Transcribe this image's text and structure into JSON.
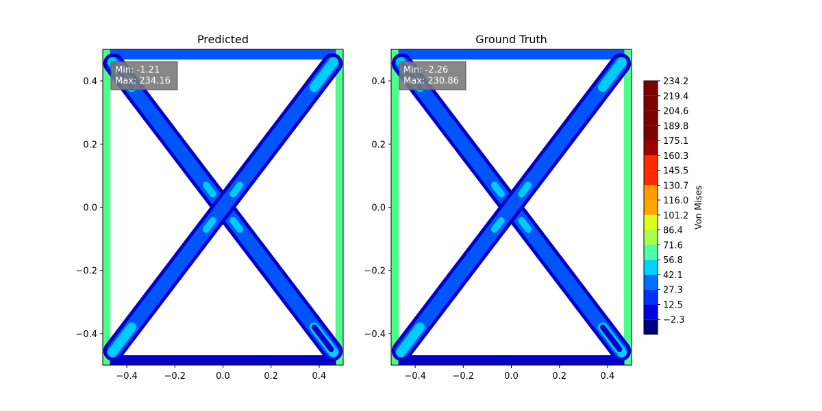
{
  "chart_data": [
    {
      "type": "heatmap",
      "title": "Predicted",
      "xlim": [
        -0.5,
        0.5
      ],
      "ylim": [
        -0.5,
        0.5
      ],
      "xticks": [
        -0.4,
        -0.2,
        0.0,
        0.2,
        0.4
      ],
      "xtick_labels": [
        "−0.4",
        "−0.2",
        "0.0",
        "0.2",
        "0.4"
      ],
      "yticks": [
        0.4,
        0.2,
        0.0,
        -0.2,
        -0.4
      ],
      "ytick_labels": [
        "0.4",
        "0.2",
        "0.0",
        "−0.2",
        "−0.4"
      ],
      "annotation": {
        "min_label": "Min: -1.21",
        "max_label": "Max: 234.16"
      },
      "min": -1.21,
      "max": 234.16
    },
    {
      "type": "heatmap",
      "title": "Ground Truth",
      "xlim": [
        -0.5,
        0.5
      ],
      "ylim": [
        -0.5,
        0.5
      ],
      "xticks": [
        -0.4,
        -0.2,
        0.0,
        0.2,
        0.4
      ],
      "xtick_labels": [
        "−0.4",
        "−0.2",
        "0.0",
        "0.2",
        "0.4"
      ],
      "yticks": [
        0.4,
        0.2,
        0.0,
        -0.2,
        -0.4
      ],
      "ytick_labels": [
        "0.4",
        "0.2",
        "0.0",
        "−0.2",
        "−0.4"
      ],
      "annotation": {
        "min_label": "Min: -2.26",
        "max_label": "Max: 230.86"
      },
      "min": -2.26,
      "max": 230.86
    }
  ],
  "colorbar": {
    "label": "Von Mises",
    "levels": [
      -17.1,
      -2.3,
      12.5,
      27.3,
      42.1,
      56.8,
      71.6,
      86.4,
      101.2,
      116.0,
      130.7,
      145.5,
      160.3,
      175.1,
      189.8,
      204.6,
      219.4,
      234.2
    ],
    "tick_labels": [
      "234.2",
      "219.4",
      "204.6",
      "189.8",
      "175.1",
      "160.3",
      "145.5",
      "130.7",
      "116.0",
      "101.2",
      "86.4",
      "71.6",
      "56.8",
      "42.1",
      "27.3",
      "12.5",
      "−2.3"
    ],
    "band_colors": [
      "#00007f",
      "#0000e0",
      "#0032ff",
      "#0070ff",
      "#00d4ff",
      "#4cffaa",
      "#aaff4c",
      "#d8ff1e",
      "#ffa500",
      "#ff9a00",
      "#ff2a00",
      "#ff2a00",
      "#9f0000",
      "#7f0000",
      "#7f0000",
      "#7f0000"
    ]
  },
  "colors": {
    "dark_blue": "#0000c8",
    "blue": "#0055ff",
    "light_blue": "#00ccff",
    "green": "#4cff88",
    "box_bg": "#7a7a7a"
  }
}
